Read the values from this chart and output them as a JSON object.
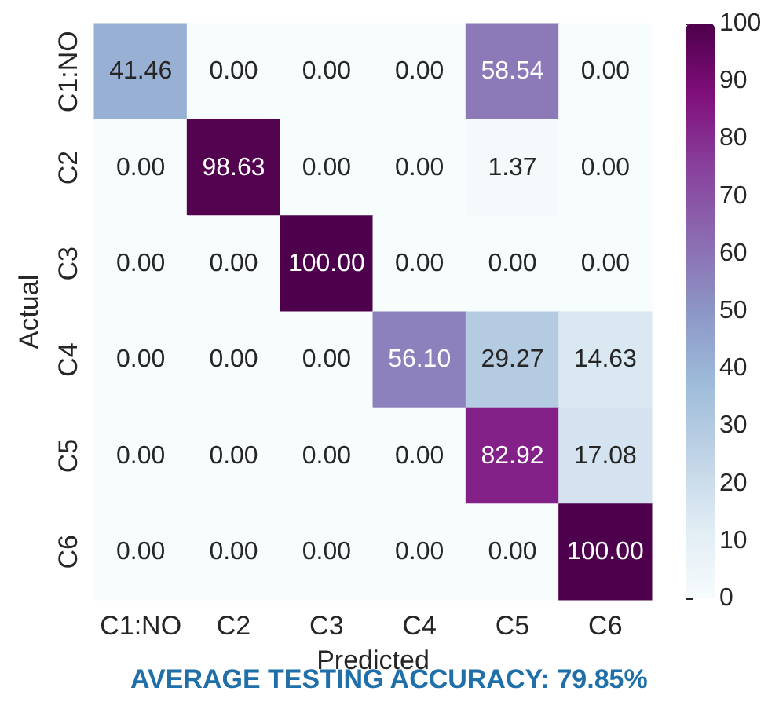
{
  "chart_data": {
    "type": "heatmap",
    "xlabel": "Predicted",
    "ylabel": "Actual",
    "clim": [
      0,
      100
    ],
    "cticks": [
      0,
      10,
      20,
      30,
      40,
      50,
      60,
      70,
      80,
      90,
      100
    ],
    "categories": [
      "C1:NO",
      "C2",
      "C3",
      "C4",
      "C5",
      "C6"
    ],
    "y_categories": [
      "C1:NO",
      "C2",
      "C3",
      "C4",
      "C5",
      "C6"
    ],
    "cells": [
      [
        41.46,
        0,
        0,
        0,
        58.54,
        0
      ],
      [
        0,
        98.63,
        0,
        0,
        1.37,
        0
      ],
      [
        0,
        0,
        100,
        0,
        0,
        0
      ],
      [
        0,
        0,
        0,
        56.1,
        29.27,
        14.63
      ],
      [
        0,
        0,
        0,
        0,
        82.92,
        17.08
      ],
      [
        0,
        0,
        0,
        0,
        0,
        100
      ]
    ],
    "cell_labels": [
      [
        "41.46",
        "0.00",
        "0.00",
        "0.00",
        "58.54",
        "0.00"
      ],
      [
        "0.00",
        "98.63",
        "0.00",
        "0.00",
        "1.37",
        "0.00"
      ],
      [
        "0.00",
        "0.00",
        "100.00",
        "0.00",
        "0.00",
        "0.00"
      ],
      [
        "0.00",
        "0.00",
        "0.00",
        "56.10",
        "29.27",
        "14.63"
      ],
      [
        "0.00",
        "0.00",
        "0.00",
        "0.00",
        "82.92",
        "17.08"
      ],
      [
        "0.00",
        "0.00",
        "0.00",
        "0.00",
        "0.00",
        "100.00"
      ]
    ],
    "annotations": [
      "AVERAGE TESTING ACCURACY: 79.85%"
    ]
  }
}
